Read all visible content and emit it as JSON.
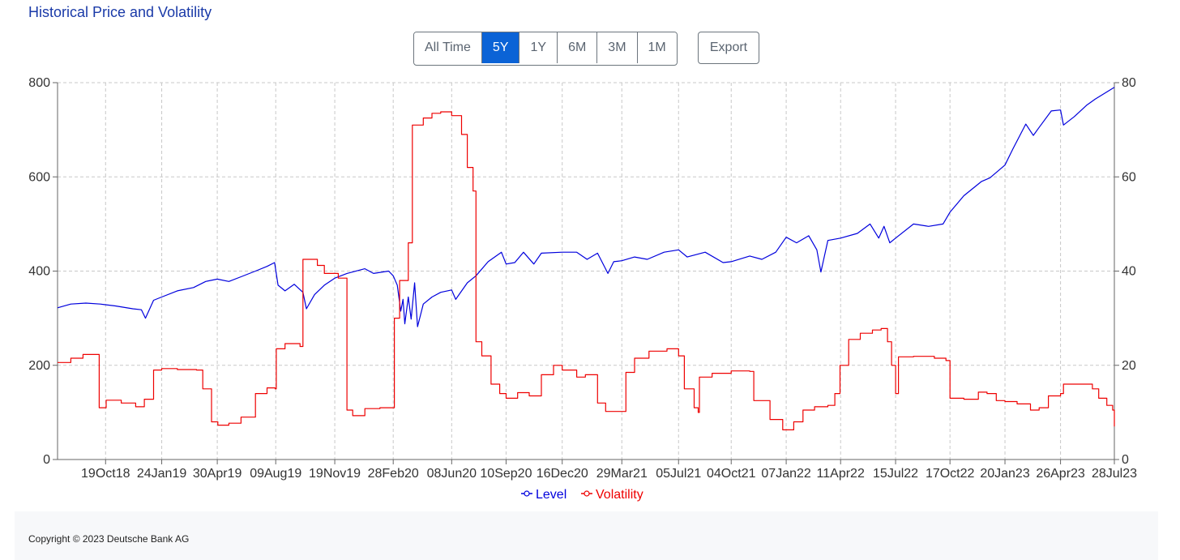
{
  "page": {
    "title": "Historical Price and Volatility",
    "ranges": [
      "All Time",
      "5Y",
      "1Y",
      "6M",
      "3M",
      "1M"
    ],
    "active_range": "5Y",
    "export_label": "Export",
    "copyright": "Copyright © 2023 Deutsche Bank AG"
  },
  "chart_data": {
    "type": "line",
    "title": "",
    "grid": true,
    "legend_position": "bottom-center",
    "y_left": {
      "range": [
        0,
        800
      ],
      "ticks": [
        0,
        200,
        400,
        600,
        800
      ]
    },
    "y_right": {
      "range": [
        0,
        80
      ],
      "ticks": [
        0,
        20,
        40,
        60,
        80
      ]
    },
    "x_range": [
      "2018-07-28",
      "2023-07-28"
    ],
    "x_ticks": [
      {
        "date": "2018-10-19",
        "label": "19Oct18"
      },
      {
        "date": "2019-01-24",
        "label": "24Jan19"
      },
      {
        "date": "2019-04-30",
        "label": "30Apr19"
      },
      {
        "date": "2019-08-09",
        "label": "09Aug19"
      },
      {
        "date": "2019-11-19",
        "label": "19Nov19"
      },
      {
        "date": "2020-02-28",
        "label": "28Feb20"
      },
      {
        "date": "2020-06-08",
        "label": "08Jun20"
      },
      {
        "date": "2020-09-10",
        "label": "10Sep20"
      },
      {
        "date": "2020-12-16",
        "label": "16Dec20"
      },
      {
        "date": "2021-03-29",
        "label": "29Mar21"
      },
      {
        "date": "2021-07-05",
        "label": "05Jul21"
      },
      {
        "date": "2021-10-04",
        "label": "04Oct21"
      },
      {
        "date": "2022-01-07",
        "label": "07Jan22"
      },
      {
        "date": "2022-04-11",
        "label": "11Apr22"
      },
      {
        "date": "2022-07-15",
        "label": "15Jul22"
      },
      {
        "date": "2022-10-17",
        "label": "17Oct22"
      },
      {
        "date": "2023-01-20",
        "label": "20Jan23"
      },
      {
        "date": "2023-04-26",
        "label": "26Apr23"
      },
      {
        "date": "2023-07-28",
        "label": "28Jul23"
      }
    ],
    "series": [
      {
        "name": "Level",
        "axis": "left",
        "color": "#0000dd",
        "points": [
          [
            "2018-07-28",
            322
          ],
          [
            "2018-08-20",
            330
          ],
          [
            "2018-09-15",
            332
          ],
          [
            "2018-10-10",
            330
          ],
          [
            "2018-11-05",
            326
          ],
          [
            "2018-12-05",
            320
          ],
          [
            "2018-12-20",
            318
          ],
          [
            "2018-12-27",
            300
          ],
          [
            "2019-01-10",
            338
          ],
          [
            "2019-01-24",
            345
          ],
          [
            "2019-02-20",
            358
          ],
          [
            "2019-03-20",
            365
          ],
          [
            "2019-04-10",
            378
          ],
          [
            "2019-04-30",
            383
          ],
          [
            "2019-05-20",
            378
          ],
          [
            "2019-06-10",
            388
          ],
          [
            "2019-07-05",
            400
          ],
          [
            "2019-07-25",
            410
          ],
          [
            "2019-08-07",
            418
          ],
          [
            "2019-08-13",
            370
          ],
          [
            "2019-08-25",
            358
          ],
          [
            "2019-09-10",
            372
          ],
          [
            "2019-09-25",
            355
          ],
          [
            "2019-10-01",
            320
          ],
          [
            "2019-10-15",
            350
          ],
          [
            "2019-11-01",
            370
          ],
          [
            "2019-11-19",
            385
          ],
          [
            "2019-12-10",
            395
          ],
          [
            "2020-01-10",
            405
          ],
          [
            "2020-01-25",
            395
          ],
          [
            "2020-02-20",
            400
          ],
          [
            "2020-02-28",
            390
          ],
          [
            "2020-03-06",
            370
          ],
          [
            "2020-03-12",
            315
          ],
          [
            "2020-03-16",
            340
          ],
          [
            "2020-03-19",
            288
          ],
          [
            "2020-03-25",
            345
          ],
          [
            "2020-03-30",
            298
          ],
          [
            "2020-04-05",
            375
          ],
          [
            "2020-04-10",
            282
          ],
          [
            "2020-04-20",
            330
          ],
          [
            "2020-05-05",
            345
          ],
          [
            "2020-05-20",
            355
          ],
          [
            "2020-06-08",
            360
          ],
          [
            "2020-06-15",
            340
          ],
          [
            "2020-07-05",
            375
          ],
          [
            "2020-07-20",
            390
          ],
          [
            "2020-08-10",
            420
          ],
          [
            "2020-09-02",
            440
          ],
          [
            "2020-09-10",
            415
          ],
          [
            "2020-09-25",
            418
          ],
          [
            "2020-10-10",
            440
          ],
          [
            "2020-10-28",
            415
          ],
          [
            "2020-11-10",
            438
          ],
          [
            "2020-12-16",
            440
          ],
          [
            "2021-01-10",
            440
          ],
          [
            "2021-01-28",
            425
          ],
          [
            "2021-02-15",
            438
          ],
          [
            "2021-03-05",
            395
          ],
          [
            "2021-03-15",
            420
          ],
          [
            "2021-03-29",
            422
          ],
          [
            "2021-04-20",
            430
          ],
          [
            "2021-05-12",
            425
          ],
          [
            "2021-06-10",
            440
          ],
          [
            "2021-07-05",
            445
          ],
          [
            "2021-07-20",
            430
          ],
          [
            "2021-08-20",
            440
          ],
          [
            "2021-09-20",
            418
          ],
          [
            "2021-10-04",
            420
          ],
          [
            "2021-11-05",
            432
          ],
          [
            "2021-11-26",
            425
          ],
          [
            "2021-12-20",
            440
          ],
          [
            "2022-01-07",
            472
          ],
          [
            "2022-01-25",
            460
          ],
          [
            "2022-02-15",
            475
          ],
          [
            "2022-03-01",
            445
          ],
          [
            "2022-03-08",
            398
          ],
          [
            "2022-03-20",
            465
          ],
          [
            "2022-04-11",
            470
          ],
          [
            "2022-05-10",
            480
          ],
          [
            "2022-06-01",
            500
          ],
          [
            "2022-06-16",
            470
          ],
          [
            "2022-06-25",
            495
          ],
          [
            "2022-07-05",
            460
          ],
          [
            "2022-07-15",
            470
          ],
          [
            "2022-08-15",
            500
          ],
          [
            "2022-09-10",
            495
          ],
          [
            "2022-10-05",
            500
          ],
          [
            "2022-10-17",
            525
          ],
          [
            "2022-11-10",
            560
          ],
          [
            "2022-12-10",
            590
          ],
          [
            "2022-12-25",
            598
          ],
          [
            "2023-01-20",
            625
          ],
          [
            "2023-02-03",
            660
          ],
          [
            "2023-02-25",
            712
          ],
          [
            "2023-03-10",
            688
          ],
          [
            "2023-03-20",
            705
          ],
          [
            "2023-04-10",
            740
          ],
          [
            "2023-04-26",
            742
          ],
          [
            "2023-05-01",
            710
          ],
          [
            "2023-05-20",
            728
          ],
          [
            "2023-06-10",
            752
          ],
          [
            "2023-06-25",
            765
          ],
          [
            "2023-07-28",
            790
          ]
        ]
      },
      {
        "name": "Volatility",
        "axis": "right",
        "color": "#ee0000",
        "points": [
          [
            "2018-07-28",
            20.6
          ],
          [
            "2018-08-20",
            21.5
          ],
          [
            "2018-09-10",
            22.3
          ],
          [
            "2018-10-05",
            22.3
          ],
          [
            "2018-10-08",
            11.0
          ],
          [
            "2018-10-20",
            12.6
          ],
          [
            "2018-11-15",
            12.0
          ],
          [
            "2018-12-10",
            11.2
          ],
          [
            "2018-12-25",
            12.8
          ],
          [
            "2019-01-10",
            19.0
          ],
          [
            "2019-01-24",
            19.3
          ],
          [
            "2019-02-20",
            19.1
          ],
          [
            "2019-03-25",
            19.0
          ],
          [
            "2019-04-05",
            15.0
          ],
          [
            "2019-04-20",
            8.0
          ],
          [
            "2019-05-01",
            7.3
          ],
          [
            "2019-05-20",
            7.7
          ],
          [
            "2019-06-10",
            9.0
          ],
          [
            "2019-07-05",
            14.0
          ],
          [
            "2019-07-25",
            15.2
          ],
          [
            "2019-08-08",
            15.0
          ],
          [
            "2019-08-10",
            23.5
          ],
          [
            "2019-08-25",
            24.6
          ],
          [
            "2019-09-20",
            24.0
          ],
          [
            "2019-09-25",
            42.5
          ],
          [
            "2019-10-20",
            41.2
          ],
          [
            "2019-11-01",
            39.5
          ],
          [
            "2019-11-25",
            38.5
          ],
          [
            "2019-12-05",
            38.5
          ],
          [
            "2019-12-10",
            10.5
          ],
          [
            "2019-12-20",
            9.3
          ],
          [
            "2020-01-10",
            10.8
          ],
          [
            "2020-02-05",
            11.0
          ],
          [
            "2020-02-24",
            11.0
          ],
          [
            "2020-03-01",
            30.0
          ],
          [
            "2020-03-10",
            38.0
          ],
          [
            "2020-03-25",
            46.0
          ],
          [
            "2020-04-01",
            71.0
          ],
          [
            "2020-04-20",
            72.5
          ],
          [
            "2020-05-05",
            73.5
          ],
          [
            "2020-05-20",
            73.8
          ],
          [
            "2020-06-08",
            73.0
          ],
          [
            "2020-06-25",
            69.0
          ],
          [
            "2020-07-05",
            62.0
          ],
          [
            "2020-07-15",
            57.0
          ],
          [
            "2020-07-20",
            25.0
          ],
          [
            "2020-07-30",
            22.0
          ],
          [
            "2020-08-15",
            16.0
          ],
          [
            "2020-08-30",
            14.0
          ],
          [
            "2020-09-10",
            13.0
          ],
          [
            "2020-09-30",
            14.2
          ],
          [
            "2020-10-20",
            13.5
          ],
          [
            "2020-11-10",
            18.0
          ],
          [
            "2020-12-01",
            20.0
          ],
          [
            "2020-12-16",
            19.0
          ],
          [
            "2021-01-10",
            17.5
          ],
          [
            "2021-01-25",
            18.0
          ],
          [
            "2021-02-15",
            12.0
          ],
          [
            "2021-03-01",
            10.2
          ],
          [
            "2021-03-22",
            10.2
          ],
          [
            "2021-04-05",
            18.5
          ],
          [
            "2021-04-20",
            21.5
          ],
          [
            "2021-05-15",
            23.0
          ],
          [
            "2021-06-15",
            23.5
          ],
          [
            "2021-07-05",
            22.0
          ],
          [
            "2021-07-15",
            15.0
          ],
          [
            "2021-08-01",
            11.0
          ],
          [
            "2021-08-08",
            10.0
          ],
          [
            "2021-08-10",
            17.5
          ],
          [
            "2021-09-01",
            18.3
          ],
          [
            "2021-10-04",
            18.8
          ],
          [
            "2021-11-05",
            18.7
          ],
          [
            "2021-11-12",
            12.5
          ],
          [
            "2021-12-10",
            8.5
          ],
          [
            "2022-01-01",
            6.3
          ],
          [
            "2022-01-20",
            8.0
          ],
          [
            "2022-02-05",
            10.5
          ],
          [
            "2022-02-25",
            11.2
          ],
          [
            "2022-03-20",
            11.5
          ],
          [
            "2022-04-01",
            14.0
          ],
          [
            "2022-04-10",
            20.0
          ],
          [
            "2022-04-25",
            25.5
          ],
          [
            "2022-05-15",
            26.8
          ],
          [
            "2022-06-05",
            27.5
          ],
          [
            "2022-06-20",
            27.8
          ],
          [
            "2022-07-01",
            25.0
          ],
          [
            "2022-07-08",
            20.0
          ],
          [
            "2022-07-15",
            14.0
          ],
          [
            "2022-07-20",
            21.8
          ],
          [
            "2022-08-15",
            21.9
          ],
          [
            "2022-09-20",
            21.5
          ],
          [
            "2022-10-10",
            21.0
          ],
          [
            "2022-10-17",
            13.0
          ],
          [
            "2022-11-10",
            12.8
          ],
          [
            "2022-12-05",
            14.3
          ],
          [
            "2022-12-20",
            14.0
          ],
          [
            "2023-01-05",
            12.5
          ],
          [
            "2023-01-20",
            12.3
          ],
          [
            "2023-02-10",
            11.8
          ],
          [
            "2023-03-05",
            10.5
          ],
          [
            "2023-03-20",
            11.0
          ],
          [
            "2023-04-05",
            13.5
          ],
          [
            "2023-04-26",
            14.0
          ],
          [
            "2023-05-01",
            16.0
          ],
          [
            "2023-05-25",
            16.0
          ],
          [
            "2023-06-20",
            15.0
          ],
          [
            "2023-07-01",
            13.0
          ],
          [
            "2023-07-15",
            11.5
          ],
          [
            "2023-07-25",
            10.5
          ],
          [
            "2023-07-28",
            7.0
          ]
        ]
      }
    ]
  }
}
